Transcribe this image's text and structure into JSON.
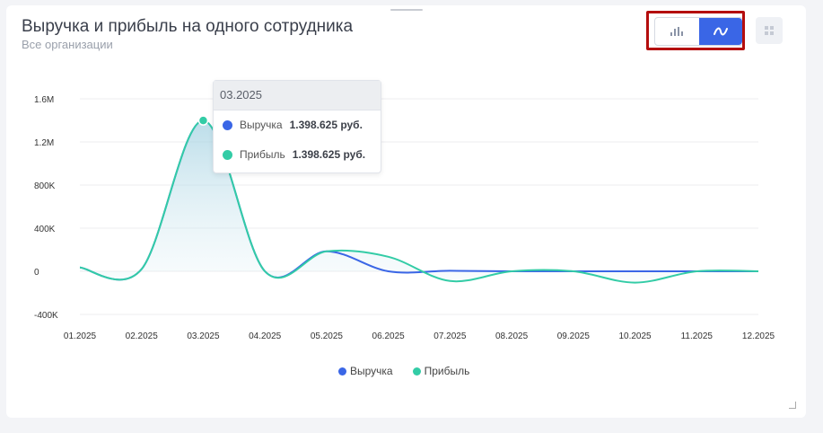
{
  "header": {
    "title": "Выручка и прибыль на одного сотрудника",
    "subtitle": "Все организации"
  },
  "toolbar": {
    "bar_icon": "bar-chart-icon",
    "line_icon": "line-chart-icon",
    "grid_icon": "grid-icon"
  },
  "tooltip": {
    "period": "03.2025",
    "rows": [
      {
        "label": "Выручка",
        "value": "1.398.625 руб."
      },
      {
        "label": "Прибыль",
        "value": "1.398.625 руб."
      }
    ]
  },
  "chart_data": {
    "type": "line",
    "title": "Выручка и прибыль на одного сотрудника",
    "categories": [
      "01.2025",
      "02.2025",
      "03.2025",
      "04.2025",
      "05.2025",
      "06.2025",
      "07.2025",
      "08.2025",
      "09.2025",
      "10.2025",
      "11.2025",
      "12.2025"
    ],
    "yticks": [
      "1.6M",
      "1.2M",
      "800K",
      "400K",
      "0",
      "-400K"
    ],
    "ylim": [
      -400000,
      1600000
    ],
    "series": [
      {
        "name": "Выручка",
        "color": "#3a66e6",
        "values": [
          35000,
          20000,
          1398625,
          0,
          185000,
          0,
          5000,
          0,
          0,
          0,
          0,
          0
        ]
      },
      {
        "name": "Прибыль",
        "color": "#33cca6",
        "values": [
          35000,
          20000,
          1398625,
          0,
          185000,
          135000,
          -90000,
          0,
          0,
          -105000,
          0,
          0
        ]
      }
    ],
    "legend": "bottom"
  }
}
